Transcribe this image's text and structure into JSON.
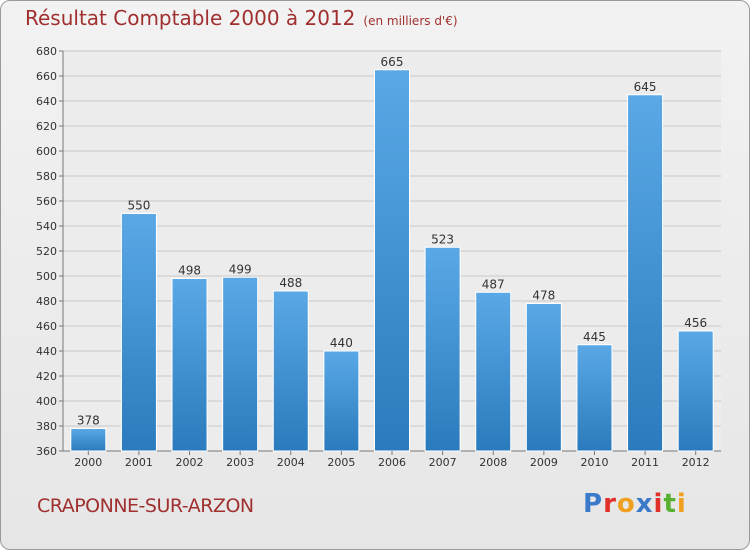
{
  "header": {
    "title": "Résultat Comptable 2000 à 2012",
    "unit": "(en milliers d'€)"
  },
  "commune": "CRAPONNE-SUR-ARZON",
  "logo": {
    "text": "Proxiti",
    "letter_colors": [
      "#3a7ac8",
      "#e0302a",
      "#f0a020",
      "#3a7ac8",
      "#e0302a",
      "#58b030",
      "#f0a020"
    ]
  },
  "colors": {
    "bar": "#5aa8e6",
    "bar_dark": "#2a7bbd",
    "title": "#a0302f",
    "grid": "#c8c8c8"
  },
  "chart_data": {
    "type": "bar",
    "title": "Résultat Comptable 2000 à 2012",
    "subtitle": "(en milliers d'€)",
    "categories": [
      "2000",
      "2001",
      "2002",
      "2003",
      "2004",
      "2005",
      "2006",
      "2007",
      "2008",
      "2009",
      "2010",
      "2011",
      "2012"
    ],
    "values": [
      378,
      550,
      498,
      499,
      488,
      440,
      665,
      523,
      487,
      478,
      445,
      645,
      456
    ],
    "ylim": [
      360,
      680
    ],
    "ytick_step": 20,
    "grid": true,
    "data_labels": true
  }
}
